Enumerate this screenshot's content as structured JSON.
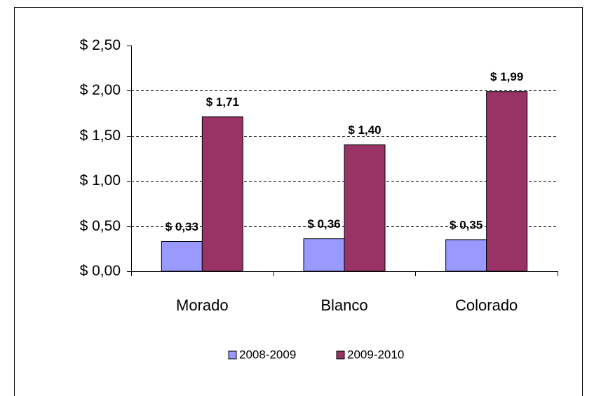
{
  "chart_data": {
    "type": "bar",
    "categories": [
      "Morado",
      "Blanco",
      "Colorado"
    ],
    "series": [
      {
        "name": "2008-2009",
        "color": "#9999ff",
        "values": [
          0.33,
          0.36,
          0.35
        ],
        "value_labels": [
          "$ 0,33",
          "$ 0,36",
          "$ 0,35"
        ]
      },
      {
        "name": "2009-2010",
        "color": "#993366",
        "values": [
          1.71,
          1.4,
          1.99
        ],
        "value_labels": [
          "$ 1,71",
          "$ 1,40",
          "$ 1,99"
        ]
      }
    ],
    "ylim": [
      0,
      2.5
    ],
    "yticks": [
      {
        "value": 0,
        "label": "$ 0,00"
      },
      {
        "value": 0.5,
        "label": "$ 0,50"
      },
      {
        "value": 1,
        "label": "$ 1,00"
      },
      {
        "value": 1.5,
        "label": "$ 1,50"
      },
      {
        "value": 2,
        "label": "$ 2,00"
      },
      {
        "value": 2.5,
        "label": "$ 2,50"
      }
    ],
    "grid": true,
    "legend": "bottom"
  }
}
